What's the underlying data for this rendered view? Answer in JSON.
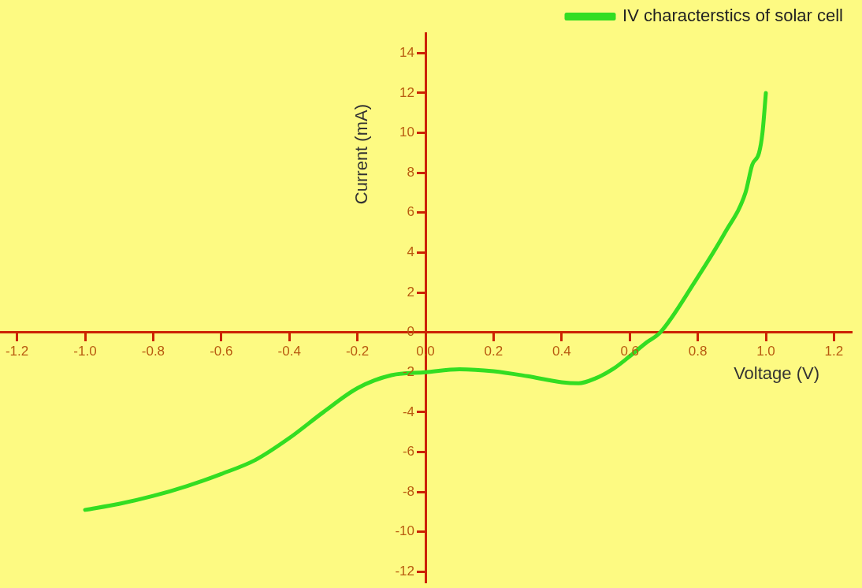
{
  "chart_data": {
    "type": "line",
    "xlabel": "Voltage (V)",
    "ylabel": "Current (mA)",
    "legend": "top right",
    "grid": false,
    "marker": "none",
    "line_style": "solid",
    "xlim": [
      -1.25,
      1.25
    ],
    "ylim": [
      -12.5,
      15
    ],
    "xticks": [
      {
        "value": -1.2,
        "label": "-1.2"
      },
      {
        "value": -1,
        "label": "-1.0"
      },
      {
        "value": -0.8,
        "label": "-0.8"
      },
      {
        "value": -0.6,
        "label": "-0.6"
      },
      {
        "value": -0.4,
        "label": "-0.4"
      },
      {
        "value": -0.2,
        "label": "-0.2"
      },
      {
        "value": 0,
        "label": "0.0"
      },
      {
        "value": 0.2,
        "label": "0.2"
      },
      {
        "value": 0.4,
        "label": "0.4"
      },
      {
        "value": 0.6,
        "label": "0.6"
      },
      {
        "value": 0.8,
        "label": "0.8"
      },
      {
        "value": 1,
        "label": "1.0"
      },
      {
        "value": 1.2,
        "label": "1.2"
      }
    ],
    "yticks": [
      -12,
      -10,
      -8,
      -6,
      -4,
      -2,
      0,
      2,
      4,
      6,
      8,
      10,
      12,
      14
    ],
    "series": [
      {
        "name": "IV characterstics of solar cell",
        "color": "#33dd22",
        "x": [
          -1.0,
          -0.9,
          -0.8,
          -0.7,
          -0.6,
          -0.5,
          -0.4,
          -0.3,
          -0.2,
          -0.1,
          0,
          0.1,
          0.2,
          0.3,
          0.4,
          0.45,
          0.5,
          0.55,
          0.6,
          0.65,
          0.69,
          0.79,
          0.88,
          0.94,
          0.96,
          0.98,
          0.99,
          1.0
        ],
        "values": [
          -8.9,
          -8.6,
          -8.2,
          -7.7,
          -7.1,
          -6.4,
          -5.3,
          -4.0,
          -2.8,
          -2.15,
          -2.0,
          -1.85,
          -1.95,
          -2.2,
          -2.5,
          -2.55,
          -2.3,
          -1.85,
          -1.2,
          -0.5,
          0,
          2.5,
          5.0,
          7.0,
          8.4,
          9.0,
          10.0,
          12.0
        ]
      }
    ]
  }
}
